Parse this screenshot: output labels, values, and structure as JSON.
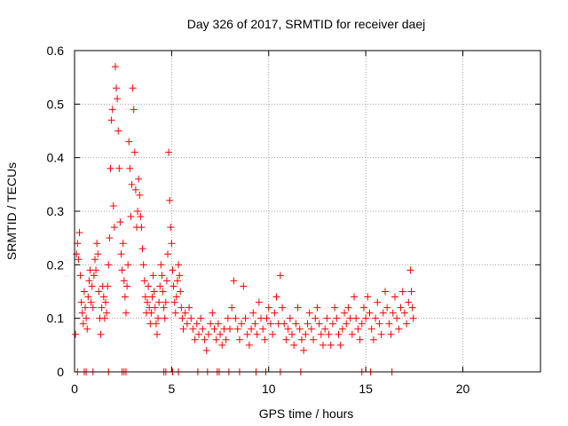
{
  "chart_data": {
    "type": "scatter",
    "title": "Day 326 of 2017, SRMTID for receiver daej",
    "xlabel": "GPS time / hours",
    "ylabel": "SRMTID / TECUs",
    "xlim": [
      0,
      24
    ],
    "ylim": [
      0,
      0.6
    ],
    "xticks": [
      0,
      5,
      10,
      15,
      20
    ],
    "yticks": [
      0,
      0.1,
      0.2,
      0.3,
      0.4,
      0.5,
      0.6
    ],
    "xtick_labels": [
      "0",
      "5",
      "10",
      "15",
      "20"
    ],
    "ytick_labels": [
      "0",
      "0.1",
      "0.2",
      "0.3",
      "0.4",
      "0.5",
      "0.6"
    ],
    "grid": true,
    "marker": "+",
    "color": "#ff0000",
    "series": [
      {
        "name": "SRMTID",
        "points": [
          [
            0.05,
            0.07
          ],
          [
            0.1,
            0.22
          ],
          [
            0.15,
            0.24
          ],
          [
            0.2,
            0.21
          ],
          [
            0.25,
            0.26
          ],
          [
            0.3,
            0.18
          ],
          [
            0.35,
            0.13
          ],
          [
            0.4,
            0.11
          ],
          [
            0.45,
            0.09
          ],
          [
            0.5,
            0.15
          ],
          [
            0.55,
            0.12
          ],
          [
            0.6,
            0.1
          ],
          [
            0.65,
            0.08
          ],
          [
            0.7,
            0.14
          ],
          [
            0.75,
            0.17
          ],
          [
            0.8,
            0.19
          ],
          [
            0.85,
            0.13
          ],
          [
            0.9,
            0.16
          ],
          [
            0.95,
            0.12
          ],
          [
            1.0,
            0.18
          ],
          [
            1.05,
            0.21
          ],
          [
            1.1,
            0.19
          ],
          [
            1.15,
            0.24
          ],
          [
            1.2,
            0.22
          ],
          [
            1.25,
            0.15
          ],
          [
            1.3,
            0.1
          ],
          [
            1.35,
            0.07
          ],
          [
            1.4,
            0.12
          ],
          [
            1.45,
            0.16
          ],
          [
            1.5,
            0.14
          ],
          [
            1.55,
            0.1
          ],
          [
            1.6,
            0.13
          ],
          [
            1.65,
            0.11
          ],
          [
            1.7,
            0.16
          ],
          [
            1.75,
            0.2
          ],
          [
            1.8,
            0.25
          ],
          [
            1.85,
            0.38
          ],
          [
            1.9,
            0.47
          ],
          [
            1.95,
            0.49
          ],
          [
            2.0,
            0.31
          ],
          [
            2.05,
            0.27
          ],
          [
            2.1,
            0.57
          ],
          [
            2.15,
            0.53
          ],
          [
            2.2,
            0.51
          ],
          [
            2.25,
            0.45
          ],
          [
            2.3,
            0.38
          ],
          [
            2.35,
            0.28
          ],
          [
            2.4,
            0.22
          ],
          [
            2.45,
            0.19
          ],
          [
            2.5,
            0.24
          ],
          [
            2.55,
            0.17
          ],
          [
            2.6,
            0.14
          ],
          [
            2.65,
            0.11
          ],
          [
            2.7,
            0.16
          ],
          [
            2.75,
            0.2
          ],
          [
            2.8,
            0.43
          ],
          [
            2.85,
            0.38
          ],
          [
            2.9,
            0.29
          ],
          [
            2.95,
            0.35
          ],
          [
            3.0,
            0.53
          ],
          [
            3.05,
            0.49
          ],
          [
            3.1,
            0.41
          ],
          [
            3.15,
            0.34
          ],
          [
            3.2,
            0.27
          ],
          [
            3.25,
            0.3
          ],
          [
            3.3,
            0.36
          ],
          [
            3.35,
            0.33
          ],
          [
            3.4,
            0.29
          ],
          [
            3.45,
            0.27
          ],
          [
            3.5,
            0.23
          ],
          [
            3.55,
            0.2
          ],
          [
            3.6,
            0.17
          ],
          [
            3.65,
            0.14
          ],
          [
            3.7,
            0.11
          ],
          [
            3.75,
            0.13
          ],
          [
            3.8,
            0.16
          ],
          [
            3.85,
            0.12
          ],
          [
            3.9,
            0.09
          ],
          [
            3.95,
            0.11
          ],
          [
            4.0,
            0.14
          ],
          [
            4.05,
            0.18
          ],
          [
            4.1,
            0.15
          ],
          [
            4.15,
            0.12
          ],
          [
            4.2,
            0.09
          ],
          [
            4.25,
            0.07
          ],
          [
            4.3,
            0.1
          ],
          [
            4.35,
            0.13
          ],
          [
            4.4,
            0.16
          ],
          [
            4.45,
            0.2
          ],
          [
            4.5,
            0.18
          ],
          [
            4.55,
            0.15
          ],
          [
            4.6,
            0.12
          ],
          [
            4.65,
            0.1
          ],
          [
            4.7,
            0.13
          ],
          [
            4.75,
            0.17
          ],
          [
            4.8,
            0.22
          ],
          [
            4.85,
            0.41
          ],
          [
            4.9,
            0.32
          ],
          [
            4.95,
            0.27
          ],
          [
            5.0,
            0.24
          ],
          [
            5.05,
            0.19
          ],
          [
            5.1,
            0.16
          ],
          [
            5.15,
            0.13
          ],
          [
            5.2,
            0.11
          ],
          [
            5.25,
            0.14
          ],
          [
            5.3,
            0.17
          ],
          [
            5.35,
            0.2
          ],
          [
            5.4,
            0.18
          ],
          [
            5.45,
            0.15
          ],
          [
            5.5,
            0.12
          ],
          [
            5.55,
            0.1
          ],
          [
            5.6,
            0.08
          ],
          [
            5.7,
            0.11
          ],
          [
            5.8,
            0.09
          ],
          [
            5.9,
            0.12
          ],
          [
            6.0,
            0.1
          ],
          [
            6.1,
            0.08
          ],
          [
            6.2,
            0.06
          ],
          [
            6.3,
            0.09
          ],
          [
            6.4,
            0.07
          ],
          [
            6.5,
            0.1
          ],
          [
            6.6,
            0.08
          ],
          [
            6.7,
            0.06
          ],
          [
            6.8,
            0.04
          ],
          [
            6.9,
            0.07
          ],
          [
            7.0,
            0.09
          ],
          [
            7.1,
            0.11
          ],
          [
            7.2,
            0.08
          ],
          [
            7.3,
            0.06
          ],
          [
            7.4,
            0.09
          ],
          [
            7.5,
            0.07
          ],
          [
            7.6,
            0.05
          ],
          [
            7.7,
            0.08
          ],
          [
            7.8,
            0.06
          ],
          [
            7.9,
            0.1
          ],
          [
            8.0,
            0.08
          ],
          [
            8.1,
            0.12
          ],
          [
            8.2,
            0.17
          ],
          [
            8.3,
            0.1
          ],
          [
            8.4,
            0.08
          ],
          [
            8.5,
            0.06
          ],
          [
            8.6,
            0.09
          ],
          [
            8.7,
            0.16
          ],
          [
            8.8,
            0.1
          ],
          [
            8.9,
            0.07
          ],
          [
            9.0,
            0.05
          ],
          [
            9.1,
            0.08
          ],
          [
            9.2,
            0.11
          ],
          [
            9.3,
            0.09
          ],
          [
            9.4,
            0.07
          ],
          [
            9.5,
            0.13
          ],
          [
            9.6,
            0.1
          ],
          [
            9.7,
            0.08
          ],
          [
            9.8,
            0.06
          ],
          [
            9.9,
            0.1
          ],
          [
            10.0,
            0.12
          ],
          [
            10.1,
            0.09
          ],
          [
            10.2,
            0.07
          ],
          [
            10.3,
            0.11
          ],
          [
            10.4,
            0.14
          ],
          [
            10.5,
            0.09
          ],
          [
            10.6,
            0.18
          ],
          [
            10.7,
            0.12
          ],
          [
            10.8,
            0.09
          ],
          [
            10.9,
            0.06
          ],
          [
            11.0,
            0.08
          ],
          [
            11.1,
            0.1
          ],
          [
            11.2,
            0.07
          ],
          [
            11.3,
            0.05
          ],
          [
            11.4,
            0.09
          ],
          [
            11.5,
            0.12
          ],
          [
            11.6,
            0.08
          ],
          [
            11.7,
            0.06
          ],
          [
            11.8,
            0.04
          ],
          [
            11.9,
            0.07
          ],
          [
            12.0,
            0.09
          ],
          [
            12.1,
            0.11
          ],
          [
            12.2,
            0.08
          ],
          [
            12.3,
            0.06
          ],
          [
            12.4,
            0.1
          ],
          [
            12.5,
            0.12
          ],
          [
            12.6,
            0.09
          ],
          [
            12.7,
            0.07
          ],
          [
            12.8,
            0.05
          ],
          [
            12.9,
            0.08
          ],
          [
            13.0,
            0.1
          ],
          [
            13.1,
            0.07
          ],
          [
            13.2,
            0.05
          ],
          [
            13.3,
            0.09
          ],
          [
            13.4,
            0.12
          ],
          [
            13.5,
            0.1
          ],
          [
            13.6,
            0.07
          ],
          [
            13.7,
            0.05
          ],
          [
            13.8,
            0.08
          ],
          [
            13.9,
            0.11
          ],
          [
            14.0,
            0.09
          ],
          [
            14.1,
            0.12
          ],
          [
            14.2,
            0.1
          ],
          [
            14.3,
            0.07
          ],
          [
            14.4,
            0.14
          ],
          [
            14.5,
            0.1
          ],
          [
            14.6,
            0.08
          ],
          [
            14.7,
            0.06
          ],
          [
            14.8,
            0.09
          ],
          [
            14.9,
            0.12
          ],
          [
            15.0,
            0.1
          ],
          [
            15.1,
            0.14
          ],
          [
            15.2,
            0.11
          ],
          [
            15.3,
            0.08
          ],
          [
            15.4,
            0.06
          ],
          [
            15.5,
            0.1
          ],
          [
            15.6,
            0.13
          ],
          [
            15.7,
            0.09
          ],
          [
            15.8,
            0.07
          ],
          [
            15.9,
            0.11
          ],
          [
            16.0,
            0.15
          ],
          [
            16.1,
            0.12
          ],
          [
            16.2,
            0.09
          ],
          [
            16.3,
            0.07
          ],
          [
            16.4,
            0.11
          ],
          [
            16.5,
            0.14
          ],
          [
            16.6,
            0.1
          ],
          [
            16.7,
            0.08
          ],
          [
            16.8,
            0.12
          ],
          [
            16.9,
            0.15
          ],
          [
            17.0,
            0.11
          ],
          [
            17.1,
            0.09
          ],
          [
            17.2,
            0.13
          ],
          [
            17.3,
            0.19
          ],
          [
            17.35,
            0.15
          ],
          [
            17.4,
            0.12
          ],
          [
            17.45,
            0.1
          ],
          [
            0.15,
            0.0
          ],
          [
            0.5,
            0.0
          ],
          [
            0.6,
            0.0
          ],
          [
            0.95,
            0.0
          ],
          [
            1.75,
            0.0
          ],
          [
            2.45,
            0.0
          ],
          [
            2.55,
            0.0
          ],
          [
            2.65,
            0.0
          ],
          [
            4.6,
            0.0
          ],
          [
            4.7,
            0.0
          ],
          [
            5.05,
            0.0
          ],
          [
            5.35,
            0.0
          ],
          [
            6.35,
            0.0
          ],
          [
            6.85,
            0.0
          ],
          [
            7.35,
            0.0
          ],
          [
            7.45,
            0.0
          ],
          [
            7.95,
            0.0
          ],
          [
            8.5,
            0.0
          ],
          [
            9.35,
            0.0
          ],
          [
            9.85,
            0.0
          ],
          [
            10.6,
            0.0
          ],
          [
            11.65,
            0.0
          ],
          [
            14.8,
            0.0
          ],
          [
            15.25,
            0.0
          ],
          [
            16.35,
            0.0
          ]
        ]
      }
    ]
  }
}
